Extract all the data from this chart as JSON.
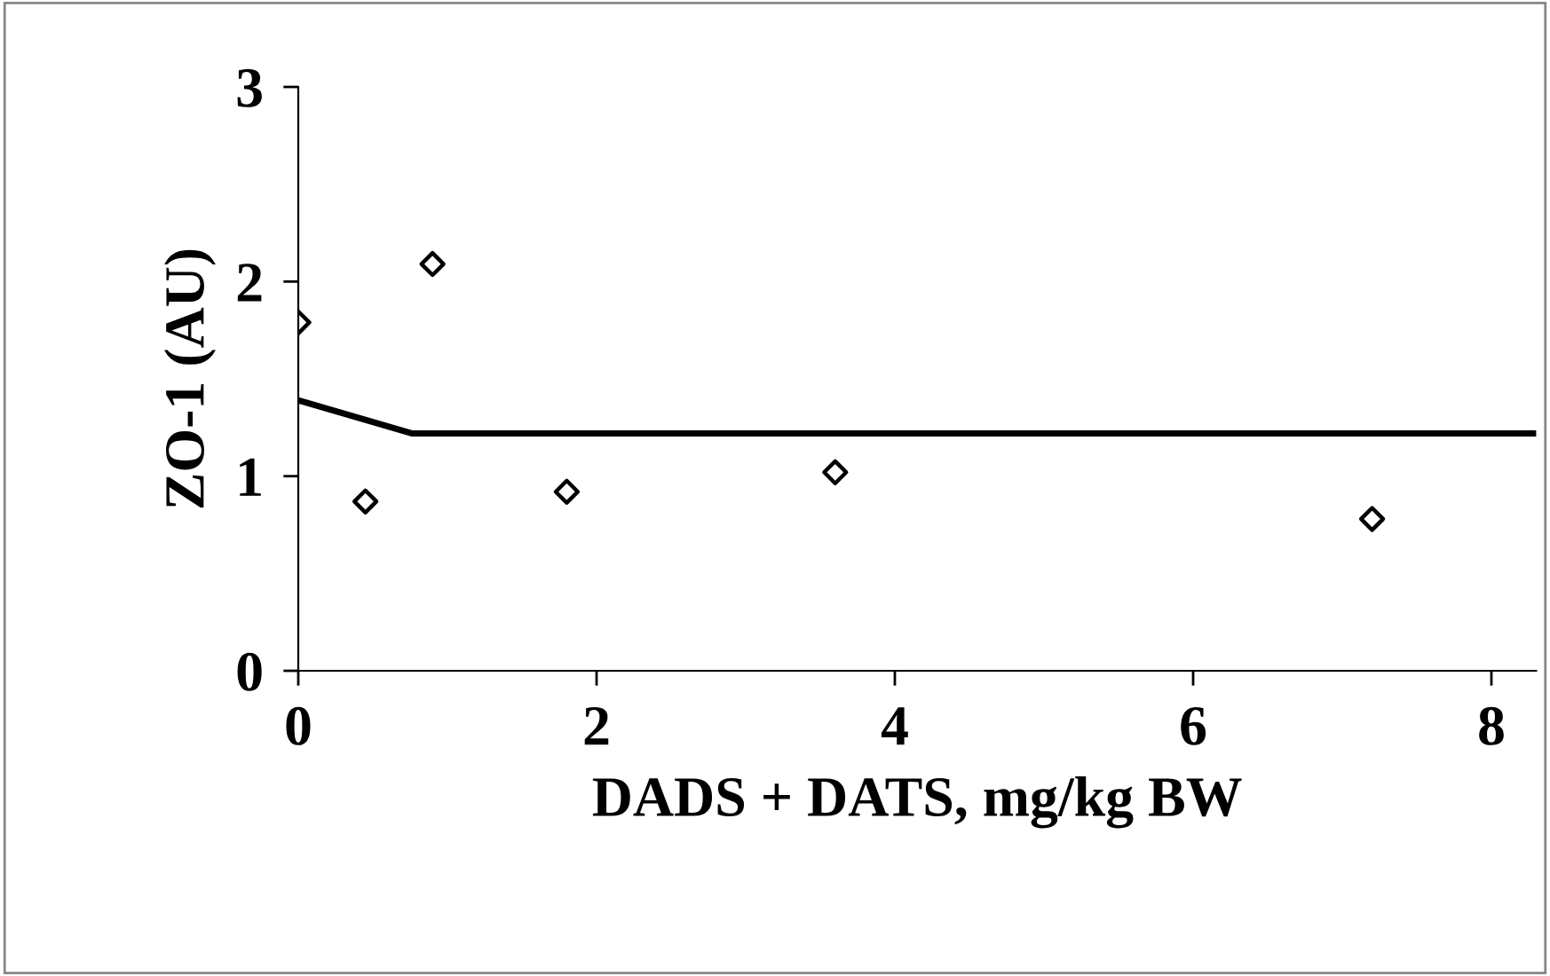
{
  "chart_data": {
    "type": "scatter",
    "xlabel": "DADS + DATS, mg/kg BW",
    "ylabel": "ZO-1 (AU)",
    "xlim": [
      0,
      8.3
    ],
    "ylim": [
      0,
      3
    ],
    "xticks": [
      0,
      2,
      4,
      6,
      8
    ],
    "yticks": [
      0,
      1,
      2,
      3
    ],
    "grid": false,
    "legend": false,
    "series": [
      {
        "color": "#000000",
        "marker": "diamond",
        "x": [
          0,
          0.45,
          0.9,
          1.8,
          3.6,
          7.2
        ],
        "values": [
          1.79,
          0.87,
          2.09,
          0.92,
          1.02,
          0.78
        ]
      },
      {
        "type": "line",
        "color": "#000000",
        "marker": "none",
        "line_style": "solid",
        "x": [
          0,
          0.76,
          8.3
        ],
        "values": [
          1.39,
          1.22,
          1.22
        ]
      }
    ]
  }
}
